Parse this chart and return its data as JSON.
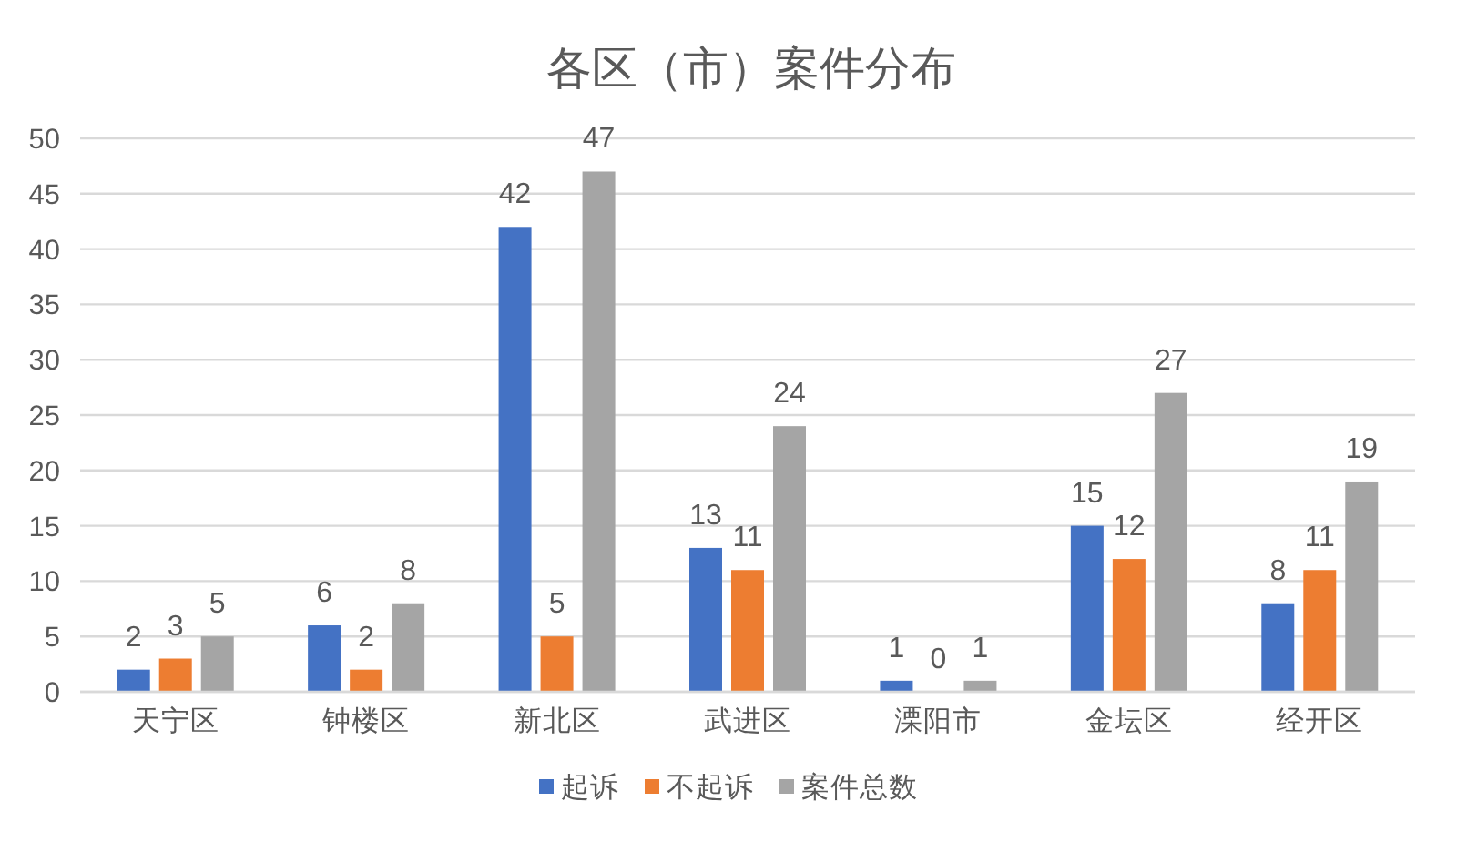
{
  "chart_data": {
    "type": "bar",
    "title": "各区（市）案件分布",
    "categories": [
      "天宁区",
      "钟楼区",
      "新北区",
      "武进区",
      "溧阳市",
      "金坛区",
      "经开区"
    ],
    "series": [
      {
        "name": "起诉",
        "color": "#4472c4",
        "values": [
          2,
          6,
          42,
          13,
          1,
          15,
          8
        ]
      },
      {
        "name": "不起诉",
        "color": "#ed7d31",
        "values": [
          3,
          2,
          5,
          11,
          0,
          12,
          11
        ]
      },
      {
        "name": "案件总数",
        "color": "#a5a5a5",
        "values": [
          5,
          8,
          47,
          24,
          1,
          27,
          19
        ]
      }
    ],
    "ylim": [
      0,
      50
    ],
    "yticks": [
      0,
      5,
      10,
      15,
      20,
      25,
      30,
      35,
      40,
      45,
      50
    ],
    "grid": "y",
    "legend": "bottom",
    "data_labels": true
  }
}
